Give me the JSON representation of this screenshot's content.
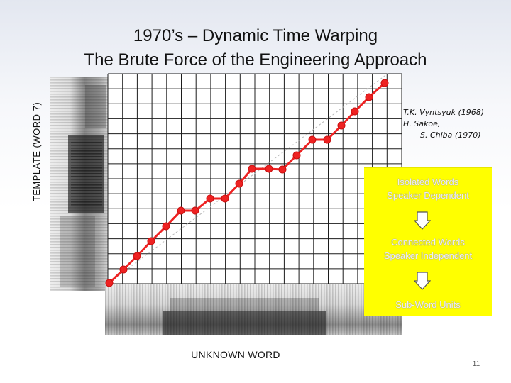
{
  "slide": {
    "title_line1": "1970’s – Dynamic Time Warping",
    "title_line2": "The Brute Force of the Engineering Approach",
    "y_axis_label": "TEMPLATE (WORD 7)",
    "x_axis_label": "UNKNOWN WORD",
    "citation": {
      "line1": "T.K. Vyntsyuk (1968)",
      "line2": "H. Sakoe,",
      "line3": "S. Chiba (1970)"
    },
    "box": {
      "item1_line1": "Isolated Words",
      "item1_line2": "Speaker Dependent",
      "item2_line1": "Connected Words",
      "item2_line2": "Speaker Independent",
      "item3": "Sub-Word Units"
    },
    "page_number": "11"
  },
  "colors": {
    "path": "#ee2222",
    "grid": "#1c1c1c",
    "box_fill": "#ffff00",
    "box_text": "#f0f0f0"
  },
  "icons": [
    "down-arrow-icon",
    "down-arrow-icon"
  ]
}
